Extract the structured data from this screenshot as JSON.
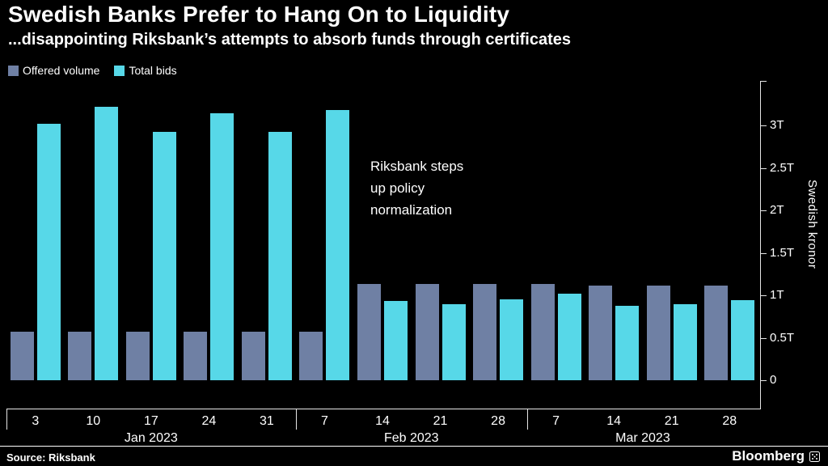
{
  "header": {
    "title": "Swedish Banks Prefer to Hang On to Liquidity",
    "subtitle": "...disappointing Riksbank’s attempts to absorb funds through certificates"
  },
  "legend": [
    {
      "label": "Offered volume",
      "color": "#6f80a4"
    },
    {
      "label": "Total bids",
      "color": "#57d8e8"
    }
  ],
  "annotation": {
    "text": "Riksbank steps\nup policy\nnormalization"
  },
  "chart_data": {
    "type": "bar",
    "categories": [
      "3",
      "10",
      "17",
      "24",
      "31",
      "7",
      "14",
      "21",
      "28",
      "7",
      "14",
      "21",
      "28"
    ],
    "series": [
      {
        "name": "Offered volume",
        "color": "#6f80a4",
        "values": [
          0.57,
          0.57,
          0.57,
          0.57,
          0.57,
          0.57,
          1.13,
          1.13,
          1.13,
          1.13,
          1.12,
          1.12,
          1.12
        ]
      },
      {
        "name": "Total bids",
        "color": "#57d8e8",
        "values": [
          3.02,
          3.22,
          2.93,
          3.15,
          2.93,
          3.18,
          0.93,
          0.9,
          0.95,
          1.02,
          0.88,
          0.9,
          0.94
        ]
      }
    ],
    "month_groups": [
      {
        "label": "Jan 2023",
        "count": 5
      },
      {
        "label": "Feb 2023",
        "count": 4
      },
      {
        "label": "Mar 2023",
        "count": 4
      }
    ],
    "yticks": [
      {
        "value": 0,
        "label": "0"
      },
      {
        "value": 0.5,
        "label": "0.5T"
      },
      {
        "value": 1,
        "label": "1T"
      },
      {
        "value": 1.5,
        "label": "1.5T"
      },
      {
        "value": 2,
        "label": "2T"
      },
      {
        "value": 2.5,
        "label": "2.5T"
      },
      {
        "value": 3,
        "label": "3T"
      }
    ],
    "ylim": [
      0,
      3.48
    ],
    "ylabel": "Swedish kronor",
    "xlabel": "",
    "grid": false,
    "legend_position": "top-left",
    "unit": "T = trillion Swedish kronor"
  },
  "footer": {
    "source": "Source: Riksbank",
    "brand": "Bloomberg"
  }
}
